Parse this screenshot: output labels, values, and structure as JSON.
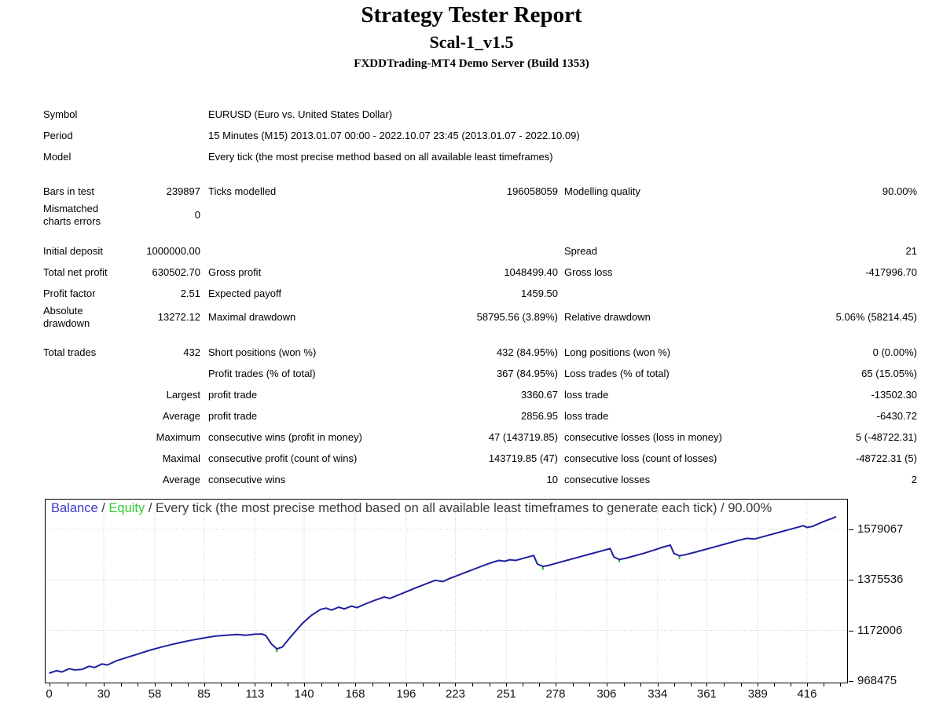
{
  "header": {
    "title": "Strategy Tester Report",
    "ea_name": "Scal-1_v1.5",
    "server": "FXDDTrading-MT4 Demo Server (Build 1353)"
  },
  "info": {
    "symbol": {
      "label": "Symbol",
      "value": "EURUSD (Euro vs. United States Dollar)"
    },
    "period": {
      "label": "Period",
      "value": "15 Minutes (M15) 2013.01.07 00:00 - 2022.10.07 23:45 (2013.01.07 - 2022.10.09)"
    },
    "model": {
      "label": "Model",
      "value": "Every tick (the most precise method based on all available least timeframes)"
    }
  },
  "stats": {
    "rows": [
      {
        "c1": "Bars in test",
        "c2": "239897",
        "c3": "Ticks modelled",
        "c4": "196058059",
        "c5": "Modelling quality",
        "c6": "90.00%"
      },
      {
        "c1": "Mismatched charts errors",
        "c2": "0",
        "c3": "",
        "c4": "",
        "c5": "",
        "c6": ""
      },
      {
        "c1": "Initial deposit",
        "c2": "1000000.00",
        "c3": "",
        "c4": "",
        "c5": "Spread",
        "c6": "21"
      },
      {
        "c1": "Total net profit",
        "c2": "630502.70",
        "c3": "Gross profit",
        "c4": "1048499.40",
        "c5": "Gross loss",
        "c6": "-417996.70"
      },
      {
        "c1": "Profit factor",
        "c2": "2.51",
        "c3": "Expected payoff",
        "c4": "1459.50",
        "c5": "",
        "c6": ""
      },
      {
        "c1": "Absolute drawdown",
        "c2": "13272.12",
        "c3": "Maximal drawdown",
        "c4": "58795.56 (3.89%)",
        "c5": "Relative drawdown",
        "c6": "5.06% (58214.45)"
      },
      {
        "c1": "Total trades",
        "c2": "432",
        "c3": "Short positions (won %)",
        "c4": "432 (84.95%)",
        "c5": "Long positions (won %)",
        "c6": "0 (0.00%)"
      },
      {
        "c1": "",
        "c2": "",
        "c3": "Profit trades (% of total)",
        "c4": "367 (84.95%)",
        "c5": "Loss trades (% of total)",
        "c6": "65 (15.05%)"
      },
      {
        "c1": "",
        "c2": "Largest",
        "c3": "profit trade",
        "c4": "3360.67",
        "c5": "loss trade",
        "c6": "-13502.30"
      },
      {
        "c1": "",
        "c2": "Average",
        "c3": "profit trade",
        "c4": "2856.95",
        "c5": "loss trade",
        "c6": "-6430.72"
      },
      {
        "c1": "",
        "c2": "Maximum",
        "c3": "consecutive wins (profit in money)",
        "c4": "47 (143719.85)",
        "c5": "consecutive losses (loss in money)",
        "c6": "5 (-48722.31)"
      },
      {
        "c1": "",
        "c2": "Maximal",
        "c3": "consecutive profit (count of wins)",
        "c4": "143719.85 (47)",
        "c5": "consecutive loss (count of losses)",
        "c6": "-48722.31 (5)"
      },
      {
        "c1": "",
        "c2": "Average",
        "c3": "consecutive wins",
        "c4": "10",
        "c5": "consecutive losses",
        "c6": "2"
      }
    ]
  },
  "chart_data": {
    "type": "line",
    "title_parts": {
      "balance_label": "Balance",
      "separator": " / ",
      "equity_label": "Equity",
      "description": "Every tick (the most precise method based on all available least timeframes to generate each tick) / 90.00%"
    },
    "xlabel": "",
    "ylabel": "",
    "x_ticks": [
      0,
      30,
      58,
      85,
      113,
      140,
      168,
      196,
      223,
      251,
      278,
      306,
      334,
      361,
      389,
      416
    ],
    "y_ticks": [
      968475,
      1172006,
      1375536,
      1579067
    ],
    "x_range": [
      0,
      437
    ],
    "y_range": [
      968475,
      1699175
    ],
    "grid": true,
    "legend_position": "top-left",
    "colors": {
      "balance_line": "#2020A0",
      "balance_label": "#3A3AC8",
      "equity_label": "#33CC33",
      "equity_tick": "#22AA22",
      "grid": "#CCCCCC"
    },
    "series": [
      {
        "name": "Balance",
        "points": [
          [
            0,
            1000000
          ],
          [
            4,
            1010000
          ],
          [
            7,
            1005000
          ],
          [
            11,
            1018000
          ],
          [
            14,
            1013000
          ],
          [
            18,
            1015000
          ],
          [
            22,
            1028000
          ],
          [
            25,
            1023000
          ],
          [
            29,
            1037000
          ],
          [
            32,
            1033000
          ],
          [
            37,
            1050000
          ],
          [
            43,
            1064000
          ],
          [
            49,
            1078000
          ],
          [
            55,
            1092000
          ],
          [
            61,
            1104000
          ],
          [
            67,
            1115000
          ],
          [
            73,
            1125000
          ],
          [
            79,
            1134000
          ],
          [
            85,
            1142000
          ],
          [
            91,
            1149000
          ],
          [
            97,
            1153000
          ],
          [
            103,
            1156000
          ],
          [
            108,
            1153000
          ],
          [
            113,
            1157000
          ],
          [
            117,
            1158000
          ],
          [
            119,
            1151000
          ],
          [
            122,
            1118000
          ],
          [
            125,
            1098000
          ],
          [
            128,
            1105000
          ],
          [
            133,
            1150000
          ],
          [
            139,
            1200000
          ],
          [
            144,
            1233000
          ],
          [
            149,
            1257000
          ],
          [
            152,
            1262000
          ],
          [
            155,
            1254000
          ],
          [
            159,
            1266000
          ],
          [
            162,
            1259000
          ],
          [
            166,
            1270000
          ],
          [
            169,
            1264000
          ],
          [
            174,
            1280000
          ],
          [
            179,
            1294000
          ],
          [
            184,
            1307000
          ],
          [
            187,
            1301000
          ],
          [
            192,
            1316000
          ],
          [
            197,
            1331000
          ],
          [
            202,
            1346000
          ],
          [
            207,
            1360000
          ],
          [
            212,
            1374000
          ],
          [
            216,
            1369000
          ],
          [
            220,
            1382000
          ],
          [
            225,
            1396000
          ],
          [
            230,
            1410000
          ],
          [
            235,
            1424000
          ],
          [
            240,
            1438000
          ],
          [
            244,
            1448000
          ],
          [
            247,
            1454000
          ],
          [
            250,
            1451000
          ],
          [
            253,
            1457000
          ],
          [
            256,
            1454000
          ],
          [
            259,
            1460000
          ],
          [
            262,
            1466000
          ],
          [
            265,
            1472000
          ],
          [
            266,
            1474000
          ],
          [
            268,
            1440000
          ],
          [
            271,
            1430000
          ],
          [
            274,
            1434000
          ],
          [
            278,
            1442000
          ],
          [
            284,
            1454000
          ],
          [
            290,
            1466000
          ],
          [
            296,
            1478000
          ],
          [
            302,
            1490000
          ],
          [
            306,
            1498000
          ],
          [
            308,
            1502000
          ],
          [
            310,
            1468000
          ],
          [
            313,
            1458000
          ],
          [
            316,
            1462000
          ],
          [
            320,
            1470000
          ],
          [
            326,
            1482000
          ],
          [
            332,
            1496000
          ],
          [
            337,
            1508000
          ],
          [
            341,
            1516000
          ],
          [
            343,
            1482000
          ],
          [
            346,
            1473000
          ],
          [
            349,
            1477000
          ],
          [
            354,
            1486000
          ],
          [
            360,
            1498000
          ],
          [
            366,
            1510000
          ],
          [
            372,
            1522000
          ],
          [
            378,
            1534000
          ],
          [
            383,
            1543000
          ],
          [
            387,
            1540000
          ],
          [
            391,
            1548000
          ],
          [
            396,
            1558000
          ],
          [
            401,
            1568000
          ],
          [
            406,
            1578000
          ],
          [
            411,
            1588000
          ],
          [
            414,
            1594000
          ],
          [
            416,
            1587000
          ],
          [
            419,
            1591000
          ],
          [
            423,
            1604000
          ],
          [
            427,
            1616000
          ],
          [
            430,
            1624000
          ],
          [
            432,
            1630503
          ]
        ]
      },
      {
        "name": "Equity",
        "dip_segments": [
          [
            125,
            1098000,
            1085000
          ],
          [
            271,
            1430000,
            1416000
          ],
          [
            313,
            1458000,
            1446000
          ],
          [
            346,
            1473000,
            1461000
          ]
        ]
      }
    ]
  }
}
